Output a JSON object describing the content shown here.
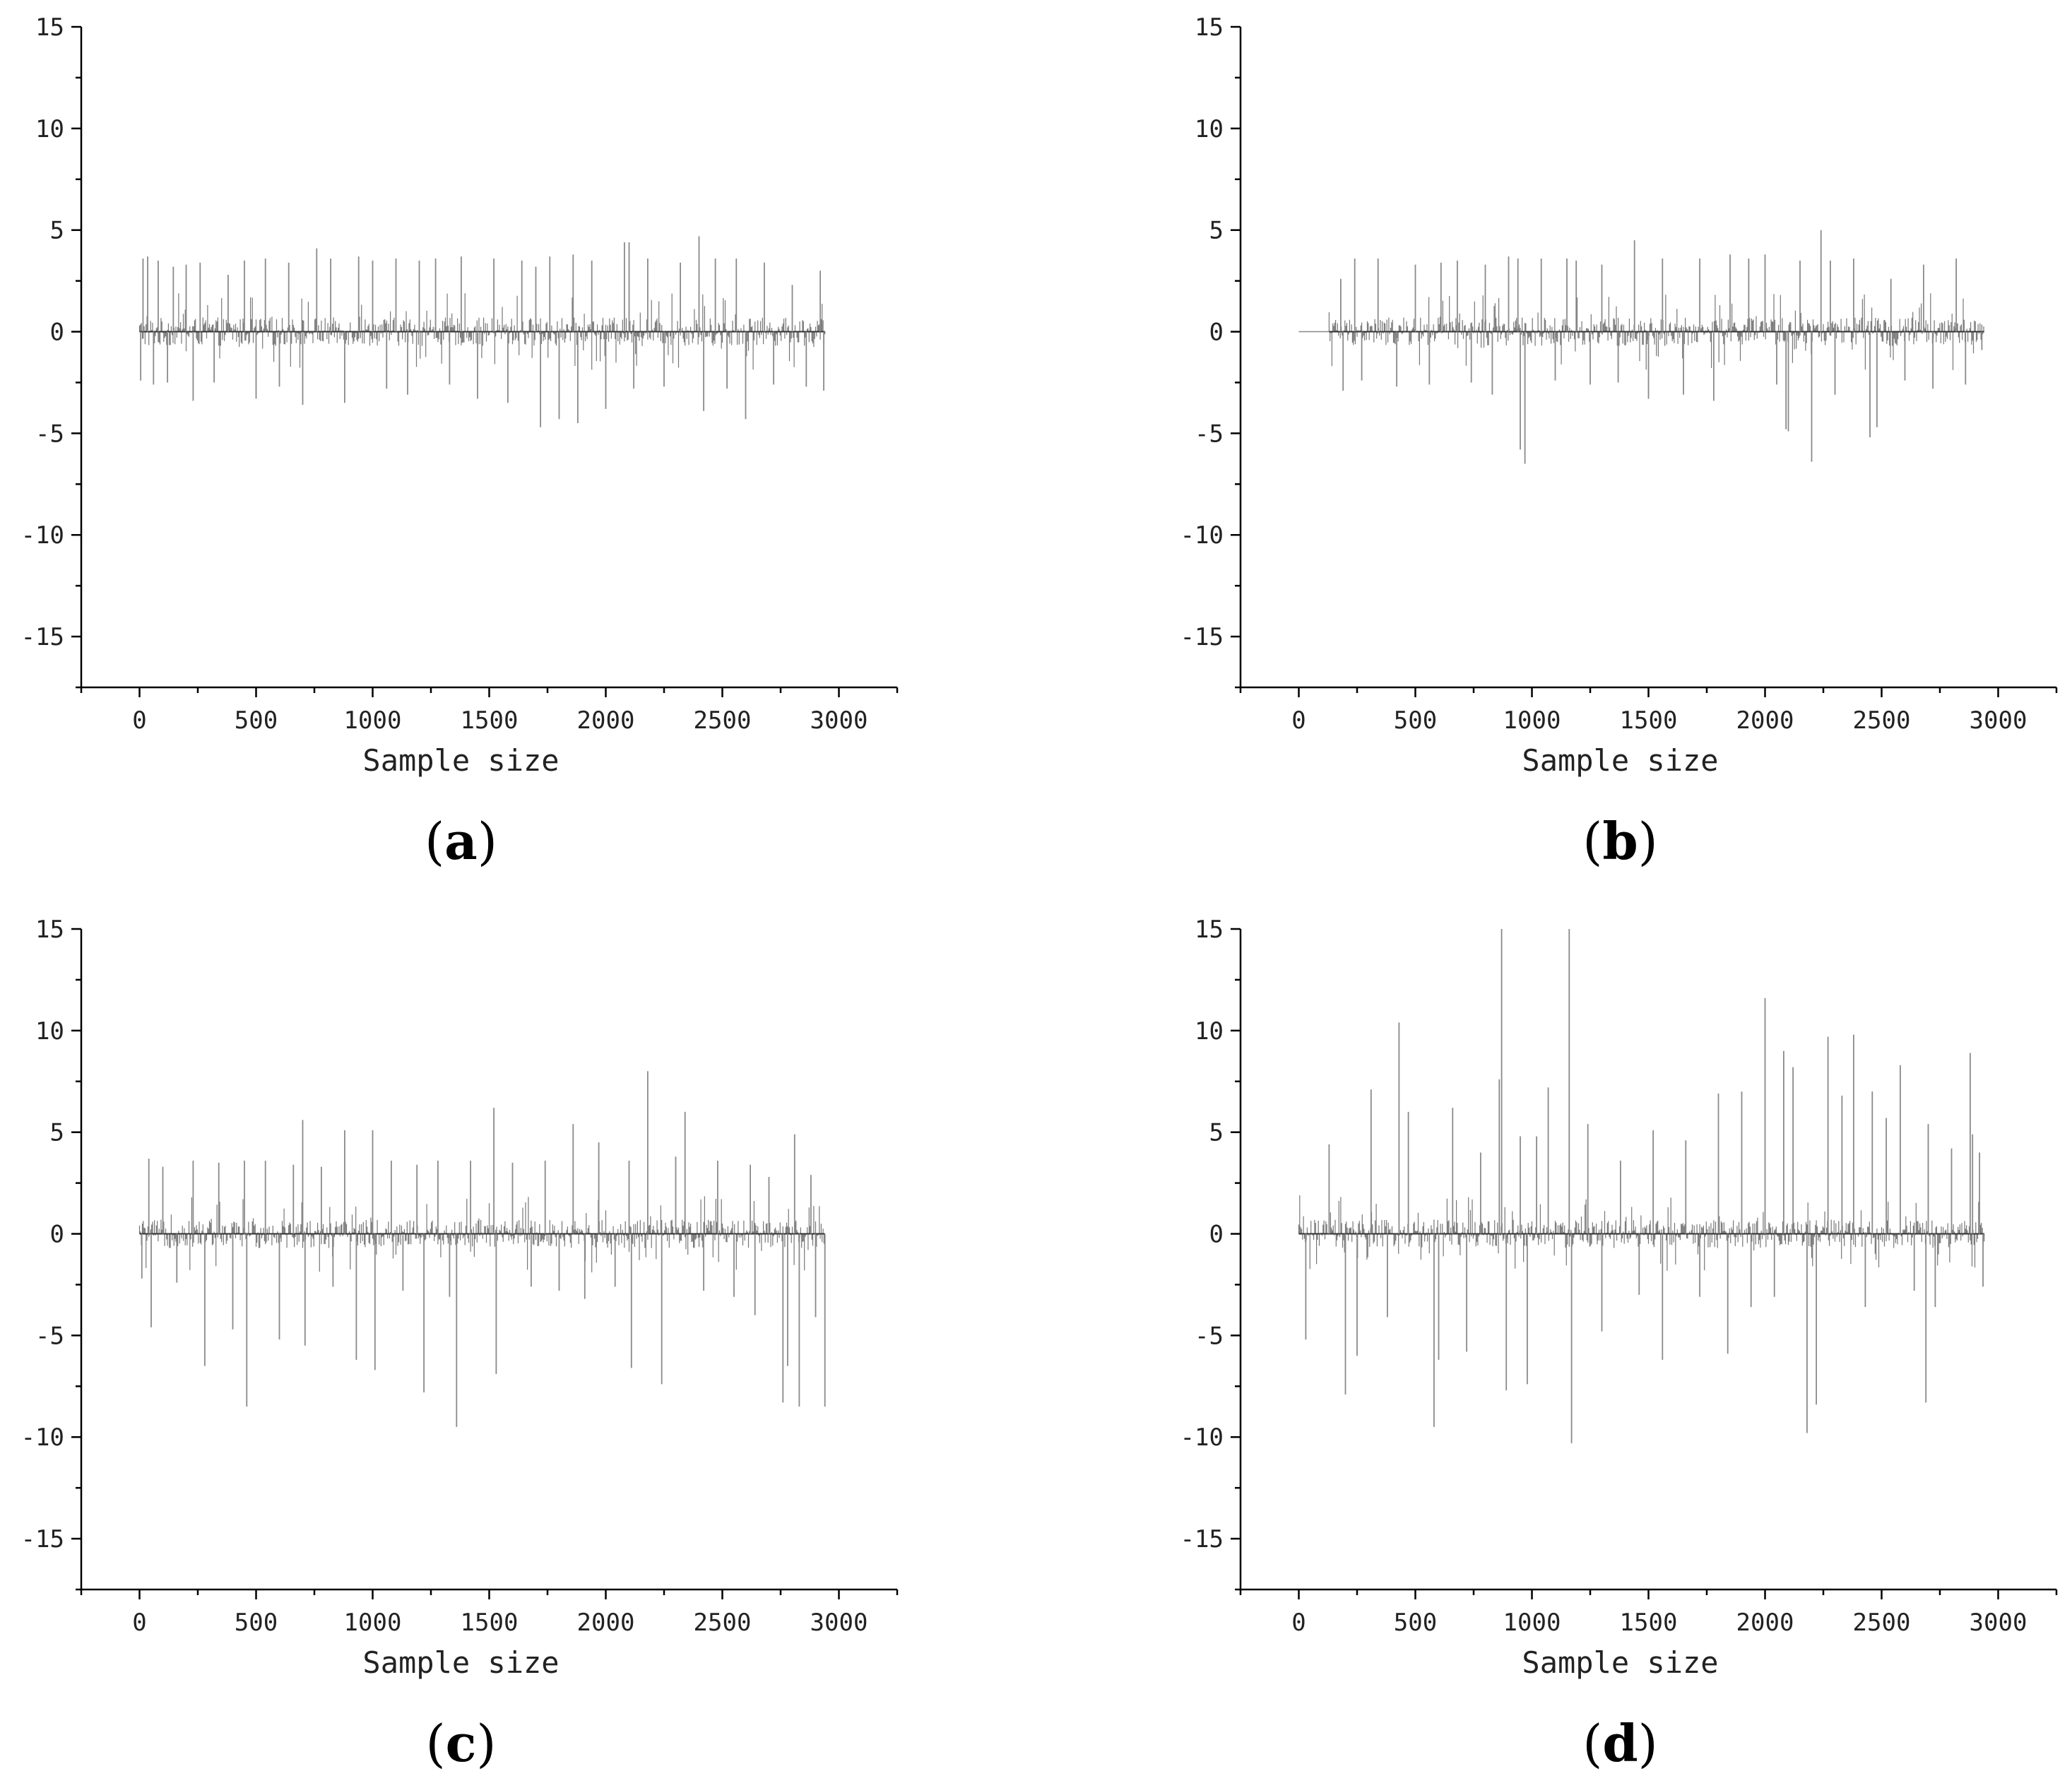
{
  "chart_data": [
    {
      "panel": "a",
      "type": "line",
      "caption": {
        "open": "(",
        "letter": "a",
        "close": ")"
      },
      "xlabel": "Sample size",
      "ylabel": "",
      "xlim": [
        -250,
        3250
      ],
      "ylim": [
        -17.5,
        15
      ],
      "x_ticks": [
        0,
        500,
        1000,
        1500,
        2000,
        2500,
        3000
      ],
      "y_ticks": [
        15,
        10,
        5,
        0,
        -5,
        -10,
        -15
      ],
      "n_samples": 2940,
      "spikes": [
        {
          "x": 5,
          "y": -2.4
        },
        {
          "x": 15,
          "y": 3.6
        },
        {
          "x": 35,
          "y": 3.7
        },
        {
          "x": 60,
          "y": -2.6
        },
        {
          "x": 80,
          "y": 3.5
        },
        {
          "x": 120,
          "y": -2.5
        },
        {
          "x": 145,
          "y": 3.2
        },
        {
          "x": 200,
          "y": 3.3
        },
        {
          "x": 230,
          "y": -3.4
        },
        {
          "x": 260,
          "y": 3.4
        },
        {
          "x": 320,
          "y": -2.5
        },
        {
          "x": 380,
          "y": 2.8
        },
        {
          "x": 450,
          "y": 3.5
        },
        {
          "x": 500,
          "y": -3.3
        },
        {
          "x": 540,
          "y": 3.6
        },
        {
          "x": 600,
          "y": -2.7
        },
        {
          "x": 640,
          "y": 3.4
        },
        {
          "x": 700,
          "y": -3.6
        },
        {
          "x": 760,
          "y": 4.1
        },
        {
          "x": 820,
          "y": 3.6
        },
        {
          "x": 880,
          "y": -3.5
        },
        {
          "x": 940,
          "y": 3.7
        },
        {
          "x": 1000,
          "y": 3.5
        },
        {
          "x": 1060,
          "y": -2.8
        },
        {
          "x": 1100,
          "y": 3.6
        },
        {
          "x": 1150,
          "y": -3.1
        },
        {
          "x": 1200,
          "y": 3.5
        },
        {
          "x": 1270,
          "y": 3.6
        },
        {
          "x": 1330,
          "y": -2.6
        },
        {
          "x": 1380,
          "y": 3.7
        },
        {
          "x": 1450,
          "y": -3.3
        },
        {
          "x": 1520,
          "y": 3.6
        },
        {
          "x": 1580,
          "y": -3.5
        },
        {
          "x": 1640,
          "y": 3.5
        },
        {
          "x": 1700,
          "y": 3.2
        },
        {
          "x": 1720,
          "y": -4.7
        },
        {
          "x": 1760,
          "y": 3.7
        },
        {
          "x": 1800,
          "y": -4.3
        },
        {
          "x": 1860,
          "y": 3.8
        },
        {
          "x": 1880,
          "y": -4.5
        },
        {
          "x": 1940,
          "y": 3.5
        },
        {
          "x": 2000,
          "y": -3.8
        },
        {
          "x": 2080,
          "y": 4.4
        },
        {
          "x": 2100,
          "y": 4.4
        },
        {
          "x": 2120,
          "y": -2.8
        },
        {
          "x": 2180,
          "y": 3.6
        },
        {
          "x": 2250,
          "y": -2.7
        },
        {
          "x": 2320,
          "y": 3.4
        },
        {
          "x": 2400,
          "y": 4.7
        },
        {
          "x": 2420,
          "y": -3.9
        },
        {
          "x": 2470,
          "y": 3.6
        },
        {
          "x": 2520,
          "y": -2.8
        },
        {
          "x": 2560,
          "y": 3.6
        },
        {
          "x": 2600,
          "y": -4.3
        },
        {
          "x": 2680,
          "y": 3.4
        },
        {
          "x": 2720,
          "y": -2.6
        },
        {
          "x": 2800,
          "y": 2.3
        },
        {
          "x": 2860,
          "y": -2.7
        },
        {
          "x": 2920,
          "y": 3.0
        },
        {
          "x": 2935,
          "y": -2.9
        }
      ]
    },
    {
      "panel": "b",
      "type": "line",
      "caption": {
        "open": "(",
        "letter": "b",
        "close": ")"
      },
      "xlabel": "Sample size",
      "ylabel": "",
      "xlim": [
        -250,
        3250
      ],
      "ylim": [
        -17.5,
        15
      ],
      "x_ticks": [
        0,
        500,
        1000,
        1500,
        2000,
        2500,
        3000
      ],
      "y_ticks": [
        15,
        10,
        5,
        0,
        -5,
        -10,
        -15
      ],
      "n_samples": 2940,
      "quiet_until": 130,
      "spikes": [
        {
          "x": 180,
          "y": 2.6
        },
        {
          "x": 190,
          "y": -2.9
        },
        {
          "x": 240,
          "y": 3.6
        },
        {
          "x": 270,
          "y": -2.4
        },
        {
          "x": 340,
          "y": 3.6
        },
        {
          "x": 420,
          "y": -2.7
        },
        {
          "x": 500,
          "y": 3.3
        },
        {
          "x": 560,
          "y": -2.6
        },
        {
          "x": 610,
          "y": 3.4
        },
        {
          "x": 680,
          "y": 3.5
        },
        {
          "x": 740,
          "y": -2.5
        },
        {
          "x": 800,
          "y": 3.3
        },
        {
          "x": 830,
          "y": -3.1
        },
        {
          "x": 900,
          "y": 3.7
        },
        {
          "x": 940,
          "y": 3.6
        },
        {
          "x": 950,
          "y": -5.8
        },
        {
          "x": 970,
          "y": -6.5
        },
        {
          "x": 1040,
          "y": 3.6
        },
        {
          "x": 1100,
          "y": -2.4
        },
        {
          "x": 1150,
          "y": 3.6
        },
        {
          "x": 1190,
          "y": 3.5
        },
        {
          "x": 1250,
          "y": -2.6
        },
        {
          "x": 1300,
          "y": 3.3
        },
        {
          "x": 1370,
          "y": -2.5
        },
        {
          "x": 1440,
          "y": 4.5
        },
        {
          "x": 1500,
          "y": -3.3
        },
        {
          "x": 1560,
          "y": 3.6
        },
        {
          "x": 1650,
          "y": -3.1
        },
        {
          "x": 1720,
          "y": 3.6
        },
        {
          "x": 1780,
          "y": -3.4
        },
        {
          "x": 1850,
          "y": 3.8
        },
        {
          "x": 1930,
          "y": 3.6
        },
        {
          "x": 2000,
          "y": 3.8
        },
        {
          "x": 2050,
          "y": -2.6
        },
        {
          "x": 2090,
          "y": -4.8
        },
        {
          "x": 2100,
          "y": -4.9
        },
        {
          "x": 2150,
          "y": 3.5
        },
        {
          "x": 2200,
          "y": -6.4
        },
        {
          "x": 2240,
          "y": 5.0
        },
        {
          "x": 2280,
          "y": 3.5
        },
        {
          "x": 2300,
          "y": -3.1
        },
        {
          "x": 2380,
          "y": 3.6
        },
        {
          "x": 2450,
          "y": -5.2
        },
        {
          "x": 2480,
          "y": -4.7
        },
        {
          "x": 2540,
          "y": 2.6
        },
        {
          "x": 2600,
          "y": -2.4
        },
        {
          "x": 2680,
          "y": 3.3
        },
        {
          "x": 2720,
          "y": -2.8
        },
        {
          "x": 2820,
          "y": 3.6
        },
        {
          "x": 2860,
          "y": -2.6
        },
        {
          "x": 2930,
          "y": -0.9
        }
      ]
    },
    {
      "panel": "c",
      "type": "line",
      "caption": {
        "open": "(",
        "letter": "c",
        "close": ")"
      },
      "xlabel": "Sample size",
      "ylabel": "",
      "xlim": [
        -250,
        3250
      ],
      "ylim": [
        -17.5,
        15
      ],
      "x_ticks": [
        0,
        500,
        1000,
        1500,
        2000,
        2500,
        3000
      ],
      "y_ticks": [
        15,
        10,
        5,
        0,
        -5,
        -10,
        -15
      ],
      "n_samples": 2940,
      "spikes": [
        {
          "x": 10,
          "y": -2.2
        },
        {
          "x": 40,
          "y": 3.7
        },
        {
          "x": 50,
          "y": -4.6
        },
        {
          "x": 100,
          "y": 3.3
        },
        {
          "x": 160,
          "y": -2.4
        },
        {
          "x": 230,
          "y": 3.6
        },
        {
          "x": 280,
          "y": -6.5
        },
        {
          "x": 340,
          "y": 3.5
        },
        {
          "x": 400,
          "y": -4.7
        },
        {
          "x": 450,
          "y": 3.6
        },
        {
          "x": 460,
          "y": -8.5
        },
        {
          "x": 540,
          "y": 3.6
        },
        {
          "x": 600,
          "y": -5.2
        },
        {
          "x": 660,
          "y": 3.4
        },
        {
          "x": 700,
          "y": 5.6
        },
        {
          "x": 710,
          "y": -5.5
        },
        {
          "x": 780,
          "y": 3.3
        },
        {
          "x": 830,
          "y": -2.6
        },
        {
          "x": 880,
          "y": 5.1
        },
        {
          "x": 930,
          "y": -6.2
        },
        {
          "x": 1000,
          "y": 5.1
        },
        {
          "x": 1010,
          "y": -6.7
        },
        {
          "x": 1080,
          "y": 3.6
        },
        {
          "x": 1130,
          "y": -2.8
        },
        {
          "x": 1190,
          "y": 3.4
        },
        {
          "x": 1220,
          "y": -7.8
        },
        {
          "x": 1280,
          "y": 3.6
        },
        {
          "x": 1330,
          "y": -3.1
        },
        {
          "x": 1360,
          "y": -9.5
        },
        {
          "x": 1420,
          "y": 3.6
        },
        {
          "x": 1520,
          "y": 6.2
        },
        {
          "x": 1530,
          "y": -6.9
        },
        {
          "x": 1600,
          "y": 3.5
        },
        {
          "x": 1680,
          "y": -2.6
        },
        {
          "x": 1740,
          "y": 3.6
        },
        {
          "x": 1800,
          "y": -2.8
        },
        {
          "x": 1860,
          "y": 5.4
        },
        {
          "x": 1910,
          "y": -3.2
        },
        {
          "x": 1970,
          "y": 4.5
        },
        {
          "x": 2040,
          "y": -2.6
        },
        {
          "x": 2100,
          "y": 3.6
        },
        {
          "x": 2110,
          "y": -6.6
        },
        {
          "x": 2180,
          "y": 8.0
        },
        {
          "x": 2240,
          "y": -7.4
        },
        {
          "x": 2300,
          "y": 3.8
        },
        {
          "x": 2340,
          "y": 6.0
        },
        {
          "x": 2420,
          "y": -2.8
        },
        {
          "x": 2480,
          "y": 3.6
        },
        {
          "x": 2550,
          "y": -3.1
        },
        {
          "x": 2620,
          "y": 3.4
        },
        {
          "x": 2640,
          "y": -4.0
        },
        {
          "x": 2700,
          "y": 2.8
        },
        {
          "x": 2760,
          "y": -8.3
        },
        {
          "x": 2780,
          "y": -6.5
        },
        {
          "x": 2810,
          "y": 4.9
        },
        {
          "x": 2830,
          "y": -8.5
        },
        {
          "x": 2880,
          "y": 2.9
        },
        {
          "x": 2900,
          "y": -4.1
        },
        {
          "x": 2940,
          "y": -8.5
        }
      ]
    },
    {
      "panel": "d",
      "type": "line",
      "caption": {
        "open": "(",
        "letter": "d",
        "close": ")"
      },
      "xlabel": "Sample size",
      "ylabel": "",
      "xlim": [
        -250,
        3250
      ],
      "ylim": [
        -17.5,
        15
      ],
      "x_ticks": [
        0,
        500,
        1000,
        1500,
        2000,
        2500,
        3000
      ],
      "y_ticks": [
        15,
        10,
        5,
        0,
        -5,
        -10,
        -15
      ],
      "n_samples": 2940,
      "spikes": [
        {
          "x": 30,
          "y": -5.2
        },
        {
          "x": 130,
          "y": 4.4
        },
        {
          "x": 200,
          "y": -7.9
        },
        {
          "x": 250,
          "y": -6.0
        },
        {
          "x": 310,
          "y": 7.1
        },
        {
          "x": 380,
          "y": -4.1
        },
        {
          "x": 430,
          "y": 10.4
        },
        {
          "x": 470,
          "y": 6.0
        },
        {
          "x": 580,
          "y": -9.5
        },
        {
          "x": 600,
          "y": -6.2
        },
        {
          "x": 660,
          "y": 6.2
        },
        {
          "x": 720,
          "y": -5.8
        },
        {
          "x": 780,
          "y": 4.0
        },
        {
          "x": 860,
          "y": 7.6
        },
        {
          "x": 870,
          "y": 15.0
        },
        {
          "x": 890,
          "y": -7.7
        },
        {
          "x": 950,
          "y": 4.8
        },
        {
          "x": 980,
          "y": -7.4
        },
        {
          "x": 1020,
          "y": 4.8
        },
        {
          "x": 1070,
          "y": 7.2
        },
        {
          "x": 1160,
          "y": 15.0
        },
        {
          "x": 1170,
          "y": -10.3
        },
        {
          "x": 1240,
          "y": 5.4
        },
        {
          "x": 1300,
          "y": -4.8
        },
        {
          "x": 1380,
          "y": 3.6
        },
        {
          "x": 1460,
          "y": -3.0
        },
        {
          "x": 1520,
          "y": 5.1
        },
        {
          "x": 1560,
          "y": -6.2
        },
        {
          "x": 1660,
          "y": 4.6
        },
        {
          "x": 1720,
          "y": -3.1
        },
        {
          "x": 1800,
          "y": 6.9
        },
        {
          "x": 1840,
          "y": -5.9
        },
        {
          "x": 1900,
          "y": 7.0
        },
        {
          "x": 1940,
          "y": -3.6
        },
        {
          "x": 2000,
          "y": 11.6
        },
        {
          "x": 2040,
          "y": -3.1
        },
        {
          "x": 2080,
          "y": 9.0
        },
        {
          "x": 2120,
          "y": 8.2
        },
        {
          "x": 2180,
          "y": -9.8
        },
        {
          "x": 2220,
          "y": -8.4
        },
        {
          "x": 2270,
          "y": 9.7
        },
        {
          "x": 2330,
          "y": 6.8
        },
        {
          "x": 2380,
          "y": 9.8
        },
        {
          "x": 2430,
          "y": -3.6
        },
        {
          "x": 2460,
          "y": 7.0
        },
        {
          "x": 2520,
          "y": 5.7
        },
        {
          "x": 2580,
          "y": 8.3
        },
        {
          "x": 2640,
          "y": -2.8
        },
        {
          "x": 2690,
          "y": -8.3
        },
        {
          "x": 2700,
          "y": 5.4
        },
        {
          "x": 2730,
          "y": -3.6
        },
        {
          "x": 2800,
          "y": 4.2
        },
        {
          "x": 2880,
          "y": 8.9
        },
        {
          "x": 2890,
          "y": 4.9
        },
        {
          "x": 2920,
          "y": 4.0
        },
        {
          "x": 2935,
          "y": -2.6
        }
      ]
    }
  ]
}
